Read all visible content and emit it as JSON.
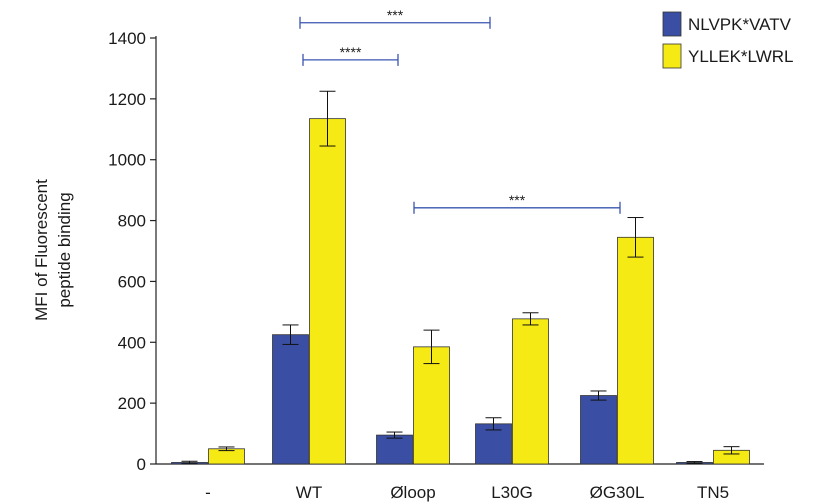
{
  "chart_data": {
    "type": "bar",
    "title": "",
    "xlabel": "",
    "ylabel": "MFI of Fluorescent peptide binding",
    "ylabel_lines": [
      "MFI of Fluorescent",
      "peptide binding"
    ],
    "categories": [
      "-",
      "WT",
      "Øloop",
      "L30G",
      "ØG30L",
      "TN5"
    ],
    "ylim": [
      0,
      1400
    ],
    "yticks": [
      0,
      200,
      400,
      600,
      800,
      1000,
      1200,
      1400
    ],
    "grid": false,
    "legend_position": "top-right",
    "series": [
      {
        "name": "NLVPK*VATV",
        "color": "#3a4fa3",
        "values": [
          5,
          425,
          95,
          132,
          225,
          5
        ],
        "errors": [
          4,
          32,
          10,
          20,
          15,
          3
        ]
      },
      {
        "name": "YLLEK*LWRL",
        "color": "#f5ea14",
        "values": [
          50,
          1135,
          385,
          477,
          745,
          45
        ],
        "errors": [
          6,
          90,
          55,
          20,
          65,
          12
        ]
      }
    ],
    "significance": [
      {
        "label": "***",
        "from_category": 1,
        "to_category": 2,
        "level": 1450
      },
      {
        "label": "****",
        "from_category": 1,
        "to_category": 2,
        "level": 1328
      },
      {
        "label": "***",
        "from_category": 2,
        "to_category": 4,
        "level": 842
      }
    ]
  }
}
